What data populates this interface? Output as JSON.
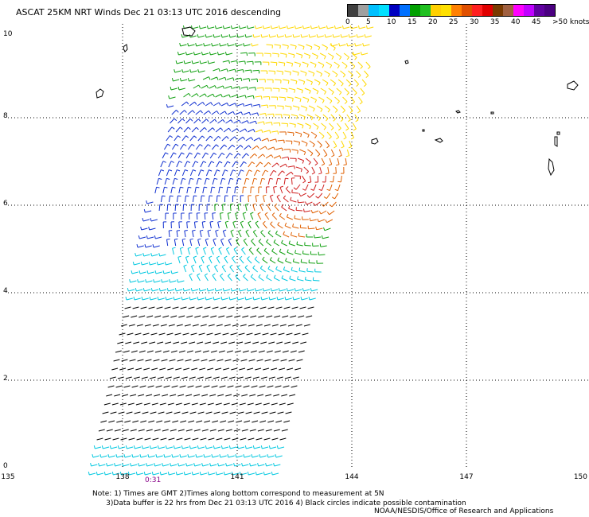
{
  "title": "ASCAT 25KM NRT Winds   Dec 21 03:13 UTC 2016  descending",
  "legend": {
    "colors": [
      "#404040",
      "#a0a0a0",
      "#00c0ff",
      "#00e0ff",
      "#0000c0",
      "#0070ff",
      "#00a000",
      "#20c020",
      "#ffd000",
      "#ffe000",
      "#ff8000",
      "#e05000",
      "#ff2020",
      "#e00000",
      "#7a3a00",
      "#a06040",
      "#ff00ff",
      "#c000ff",
      "#6000a0",
      "#4a0080"
    ],
    "labels": [
      "0",
      "5",
      "10",
      "15",
      "20",
      "25",
      "30",
      "35",
      "40",
      "45",
      ">50 knots"
    ]
  },
  "axes": {
    "lon_ticks": [
      "135",
      "138",
      "141",
      "144",
      "147",
      "150"
    ],
    "lat_ticks": [
      "0",
      "2",
      "4",
      "6",
      "8",
      "10"
    ]
  },
  "time_label": "0:31",
  "notes": [
    "Note: 1) Times are GMT 2)Times along bottom correspond to measurement at 5N",
    "      3)Data buffer is 22 hrs from Dec 21 03:13 UTC 2016 4) Black circles indicate possible contamination"
  ],
  "credit": "NOAA/NESDIS/Office of Research and Applications",
  "swath_colors": {
    "calm": "#000000",
    "light": "#00c8e0",
    "moderate": "#1030d0",
    "fresh": "#10a010",
    "strong": "#ffd800",
    "gale": "#e06000",
    "storm": "#d02020"
  }
}
